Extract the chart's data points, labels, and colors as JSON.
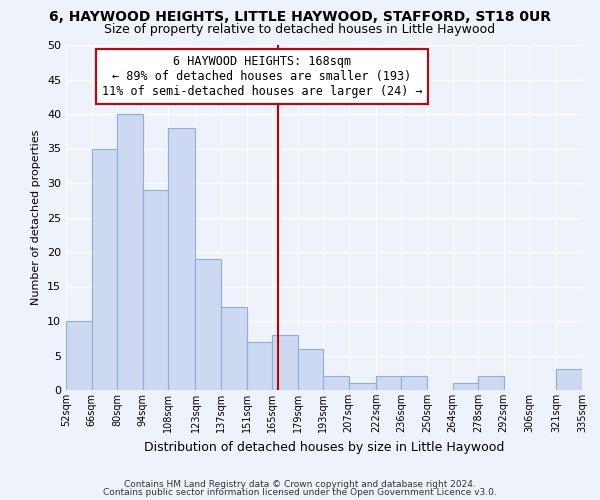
{
  "title1": "6, HAYWOOD HEIGHTS, LITTLE HAYWOOD, STAFFORD, ST18 0UR",
  "title2": "Size of property relative to detached houses in Little Haywood",
  "xlabel": "Distribution of detached houses by size in Little Haywood",
  "ylabel": "Number of detached properties",
  "bin_edges": [
    52,
    66,
    80,
    94,
    108,
    123,
    137,
    151,
    165,
    179,
    193,
    207,
    222,
    236,
    250,
    264,
    278,
    292,
    306,
    321,
    335
  ],
  "counts": [
    10,
    35,
    40,
    29,
    38,
    19,
    12,
    7,
    8,
    6,
    2,
    1,
    2,
    2,
    0,
    1,
    2,
    0,
    0,
    3
  ],
  "bar_color": "#ccd9f0",
  "bar_edge_color": "#8ab0d8",
  "vline_x": 168,
  "vline_color": "#bb0000",
  "annotation_line1": "6 HAYWOOD HEIGHTS: 168sqm",
  "annotation_line2": "← 89% of detached houses are smaller (193)",
  "annotation_line3": "11% of semi-detached houses are larger (24) →",
  "annotation_box_edge": "#cc0000",
  "ylim": [
    0,
    50
  ],
  "yticks": [
    0,
    5,
    10,
    15,
    20,
    25,
    30,
    35,
    40,
    45,
    50
  ],
  "tick_labels": [
    "52sqm",
    "66sqm",
    "80sqm",
    "94sqm",
    "108sqm",
    "123sqm",
    "137sqm",
    "151sqm",
    "165sqm",
    "179sqm",
    "193sqm",
    "207sqm",
    "222sqm",
    "236sqm",
    "250sqm",
    "264sqm",
    "278sqm",
    "292sqm",
    "306sqm",
    "321sqm",
    "335sqm"
  ],
  "footer1": "Contains HM Land Registry data © Crown copyright and database right 2024.",
  "footer2": "Contains public sector information licensed under the Open Government Licence v3.0.",
  "bg_color": "#eef2fb",
  "grid_color": "#ffffff",
  "annotation_fontsize": 8.5,
  "title1_fontsize": 10,
  "title2_fontsize": 9
}
